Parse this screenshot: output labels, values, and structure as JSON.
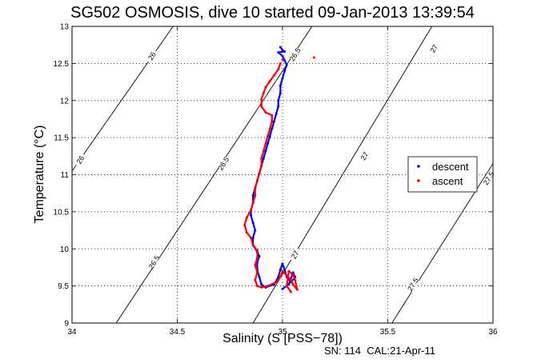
{
  "chart_data": {
    "type": "scatter",
    "title": "SG502 OSMOSIS, dive 10 started 09-Jan-2013 13:39:54",
    "xlabel": "Salinity (S [PSS−78])",
    "ylabel": "Temperature (°C)",
    "xlim": [
      34,
      36
    ],
    "ylim": [
      9,
      13
    ],
    "x_ticks": [
      "34",
      "34.5",
      "35",
      "35.5",
      "36"
    ],
    "y_ticks": [
      "9",
      "9.5",
      "10",
      "10.5",
      "11",
      "11.5",
      "12",
      "12.5",
      "13"
    ],
    "grid": true,
    "legend_position": "right",
    "series": [
      {
        "name": "descent",
        "color": "#0000ff",
        "points": [
          [
            34.99,
            12.72
          ],
          [
            35.0,
            12.68
          ],
          [
            35.01,
            12.66
          ],
          [
            34.98,
            12.65
          ],
          [
            35.0,
            12.6
          ],
          [
            35.01,
            12.54
          ],
          [
            35.02,
            12.48
          ],
          [
            35.01,
            12.4
          ],
          [
            35.0,
            12.3
          ],
          [
            34.99,
            12.2
          ],
          [
            34.99,
            12.1
          ],
          [
            34.98,
            12.0
          ],
          [
            34.98,
            11.92
          ],
          [
            34.97,
            11.82
          ],
          [
            34.96,
            11.72
          ],
          [
            34.95,
            11.62
          ],
          [
            34.94,
            11.52
          ],
          [
            34.93,
            11.42
          ],
          [
            34.92,
            11.32
          ],
          [
            34.91,
            11.22
          ],
          [
            34.9,
            11.12
          ],
          [
            34.89,
            11.02
          ],
          [
            34.88,
            10.92
          ],
          [
            34.87,
            10.82
          ],
          [
            34.86,
            10.72
          ],
          [
            34.86,
            10.62
          ],
          [
            34.85,
            10.52
          ],
          [
            34.85,
            10.45
          ],
          [
            34.86,
            10.35
          ],
          [
            34.87,
            10.25
          ],
          [
            34.86,
            10.15
          ],
          [
            34.86,
            10.05
          ],
          [
            34.88,
            9.96
          ],
          [
            34.89,
            9.9
          ],
          [
            34.88,
            9.82
          ],
          [
            34.88,
            9.72
          ],
          [
            34.89,
            9.62
          ],
          [
            34.9,
            9.52
          ],
          [
            34.92,
            9.48
          ],
          [
            34.96,
            9.52
          ],
          [
            34.98,
            9.62
          ],
          [
            34.99,
            9.72
          ],
          [
            35.0,
            9.8
          ],
          [
            35.01,
            9.72
          ],
          [
            35.02,
            9.62
          ],
          [
            35.04,
            9.55
          ],
          [
            35.06,
            9.62
          ],
          [
            35.05,
            9.68
          ],
          [
            35.03,
            9.52
          ],
          [
            35.0,
            9.46
          ]
        ]
      },
      {
        "name": "ascent",
        "color": "#ff0000",
        "points": [
          [
            35.0,
            12.55
          ],
          [
            35.15,
            12.58
          ],
          [
            34.99,
            12.5
          ],
          [
            34.98,
            12.42
          ],
          [
            34.96,
            12.34
          ],
          [
            34.94,
            12.26
          ],
          [
            34.92,
            12.18
          ],
          [
            34.91,
            12.1
          ],
          [
            34.9,
            12.02
          ],
          [
            34.9,
            11.92
          ],
          [
            34.92,
            11.84
          ],
          [
            34.95,
            11.8
          ],
          [
            34.95,
            11.72
          ],
          [
            34.94,
            11.62
          ],
          [
            34.93,
            11.52
          ],
          [
            34.92,
            11.42
          ],
          [
            34.91,
            11.32
          ],
          [
            34.9,
            11.22
          ],
          [
            34.9,
            11.12
          ],
          [
            34.89,
            11.02
          ],
          [
            34.88,
            10.92
          ],
          [
            34.87,
            10.82
          ],
          [
            34.87,
            10.72
          ],
          [
            34.86,
            10.62
          ],
          [
            34.85,
            10.52
          ],
          [
            34.83,
            10.42
          ],
          [
            34.82,
            10.32
          ],
          [
            34.83,
            10.22
          ],
          [
            34.85,
            10.15
          ],
          [
            34.86,
            10.05
          ],
          [
            34.88,
            9.98
          ],
          [
            34.88,
            9.88
          ],
          [
            34.87,
            9.78
          ],
          [
            34.88,
            9.68
          ],
          [
            34.87,
            9.58
          ],
          [
            34.88,
            9.5
          ],
          [
            34.9,
            9.48
          ],
          [
            34.93,
            9.5
          ],
          [
            34.97,
            9.55
          ],
          [
            34.99,
            9.62
          ],
          [
            35.0,
            9.7
          ],
          [
            35.02,
            9.64
          ],
          [
            35.04,
            9.58
          ],
          [
            35.05,
            9.52
          ],
          [
            35.07,
            9.45
          ],
          [
            35.06,
            9.58
          ],
          [
            35.05,
            9.65
          ],
          [
            35.03,
            9.7
          ],
          [
            35.02,
            9.5
          ],
          [
            35.04,
            9.42
          ]
        ]
      }
    ],
    "density_contours": [
      {
        "label": "26",
        "points": [
          [
            34,
            11.05
          ],
          [
            34.48,
            13.0
          ]
        ]
      },
      {
        "label": "26.5",
        "points": [
          [
            34.21,
            9.0
          ],
          [
            35.14,
            13.0
          ]
        ]
      },
      {
        "label": "27",
        "points": [
          [
            34.86,
            9.0
          ],
          [
            35.71,
            13.0
          ]
        ]
      },
      {
        "label": "27.5",
        "points": [
          [
            35.52,
            9.0
          ],
          [
            36.0,
            11.15
          ]
        ]
      }
    ],
    "contour_labels": [
      {
        "text": "26",
        "x": 34.38,
        "y": 12.6,
        "angle": -58
      },
      {
        "text": "26",
        "x": 34.04,
        "y": 11.2,
        "angle": -58
      },
      {
        "text": "26.5",
        "x": 35.06,
        "y": 12.62,
        "angle": -58
      },
      {
        "text": "26.5",
        "x": 34.72,
        "y": 11.15,
        "angle": -58
      },
      {
        "text": "26.5",
        "x": 34.39,
        "y": 9.82,
        "angle": -58
      },
      {
        "text": "27",
        "x": 35.72,
        "y": 12.7,
        "angle": -58
      },
      {
        "text": "27",
        "x": 35.39,
        "y": 11.25,
        "angle": -58
      },
      {
        "text": "27",
        "x": 35.06,
        "y": 9.92,
        "angle": -58
      },
      {
        "text": "27.5",
        "x": 35.98,
        "y": 10.95,
        "angle": -58
      },
      {
        "text": "27.5",
        "x": 35.62,
        "y": 9.52,
        "angle": -58
      }
    ]
  },
  "footer": "SN: 114  CAL:21-Apr-11"
}
